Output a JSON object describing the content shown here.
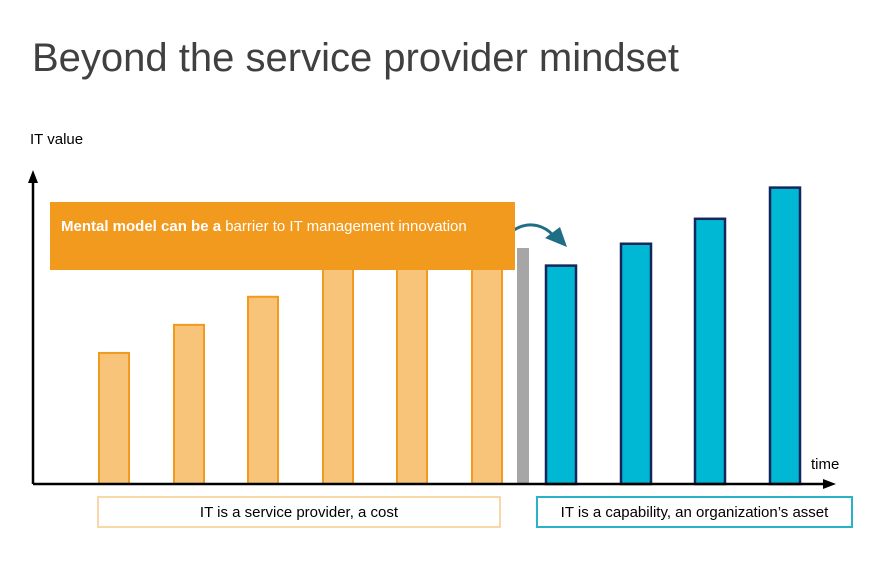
{
  "slide": {
    "title": "Beyond the service provider mindset"
  },
  "banner": {
    "bold_text": "Mental model can be a",
    "rest_text": " barrier to IT management innovation"
  },
  "labels": {
    "left_box": "IT is a service provider, a cost",
    "right_box": "IT is a capability, an organization’s asset"
  },
  "colors": {
    "cost_fill": "#F8C47A",
    "cost_stroke": "#F29A1E",
    "asset_fill": "#00B8D4",
    "asset_stroke": "#14265C",
    "divider": "#A6A6A6",
    "banner": "#F29A1E",
    "arrow": "#1F6E85"
  },
  "chart_data": {
    "type": "bar",
    "xlabel": "time",
    "ylabel": "IT value",
    "ylim": [
      0,
      10
    ],
    "grid": false,
    "series": [
      {
        "values": [
          4.2,
          5.1,
          6.0,
          7.0,
          7.0,
          7.0
        ]
      },
      {
        "values": [
          7.0,
          7.7,
          8.5,
          9.5
        ]
      }
    ]
  }
}
